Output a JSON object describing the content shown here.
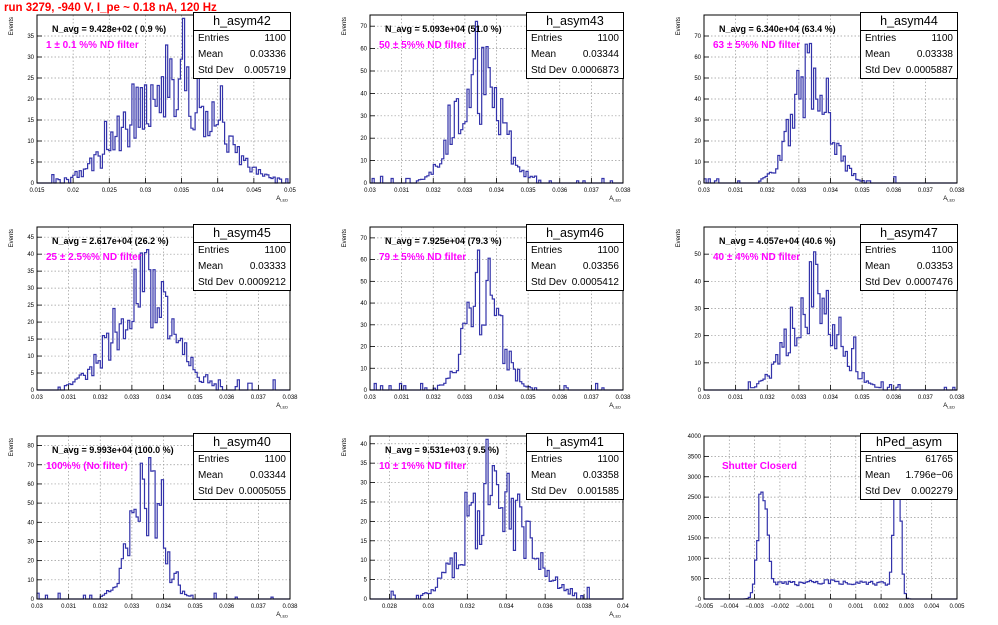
{
  "canvas": {
    "title": "run 3279,  -940 V, I_pe ~ 0.18 nA, 120 Hz",
    "title_color": "#ff0000"
  },
  "style": {
    "hist_color": "#3333aa",
    "label_color": "#ff00ff"
  },
  "chart_data": [
    {
      "type": "histogram",
      "hist": "h_asym42",
      "entries": "1100",
      "mean": "0.03336",
      "std_dev": "0.005719",
      "annotation": "N_avg = 9.428e+02 ( 0.9 %)",
      "label": "1 ± 0.1 %% ND filter",
      "xlabel": "A_LED",
      "ylabel": "Events",
      "xlim": [
        0.015,
        0.05
      ],
      "ylim": [
        0,
        40
      ],
      "xticks": [
        "0.015",
        "0.02",
        "0.025",
        "0.03",
        "0.035",
        "0.04",
        "0.045",
        "0.05"
      ],
      "yticks": [
        "0",
        "5",
        "10",
        "15",
        "20",
        "25",
        "30",
        "35"
      ],
      "grid": true,
      "shape": "wide"
    },
    {
      "type": "histogram",
      "hist": "h_asym43",
      "entries": "1100",
      "mean": "0.03344",
      "std_dev": "0.0006873",
      "annotation": "N_avg = 5.093e+04 (51.0 %)",
      "label": "50 ± 5%% ND filter",
      "xlabel": "A_LED",
      "ylabel": "Events",
      "xlim": [
        0.03,
        0.038
      ],
      "ylim": [
        0,
        75
      ],
      "xticks": [
        "0.03",
        "0.031",
        "0.032",
        "0.033",
        "0.034",
        "0.035",
        "0.036",
        "0.037",
        "0.038"
      ],
      "yticks": [
        "0",
        "10",
        "20",
        "30",
        "40",
        "50",
        "60",
        "70"
      ],
      "grid": true,
      "shape": "narrow"
    },
    {
      "type": "histogram",
      "hist": "h_asym44",
      "entries": "1100",
      "mean": "0.03338",
      "std_dev": "0.0005887",
      "annotation": "N_avg = 6.340e+04 (63.4 %)",
      "label": "63 ± 5%% ND filter",
      "xlabel": "A_LED",
      "ylabel": "Events",
      "xlim": [
        0.03,
        0.038
      ],
      "ylim": [
        0,
        80
      ],
      "xticks": [
        "0.03",
        "0.031",
        "0.032",
        "0.033",
        "0.034",
        "0.035",
        "0.036",
        "0.037",
        "0.038"
      ],
      "yticks": [
        "0",
        "10",
        "20",
        "30",
        "40",
        "50",
        "60",
        "70"
      ],
      "grid": true,
      "shape": "narrow"
    },
    {
      "type": "histogram",
      "hist": "h_asym45",
      "entries": "1100",
      "mean": "0.03333",
      "std_dev": "0.0009212",
      "annotation": "N_avg = 2.617e+04 (26.2 %)",
      "label": "25 ± 2.5%% ND filter",
      "xlabel": "A_LED",
      "ylabel": "Events",
      "xlim": [
        0.03,
        0.038
      ],
      "ylim": [
        0,
        48
      ],
      "xticks": [
        "0.03",
        "0.031",
        "0.032",
        "0.033",
        "0.034",
        "0.035",
        "0.036",
        "0.037",
        "0.038"
      ],
      "yticks": [
        "0",
        "5",
        "10",
        "15",
        "20",
        "25",
        "30",
        "35",
        "40",
        "45"
      ],
      "grid": true,
      "shape": "medium"
    },
    {
      "type": "histogram",
      "hist": "h_asym46",
      "entries": "1100",
      "mean": "0.03356",
      "std_dev": "0.0005412",
      "annotation": "N_avg = 7.925e+04 (79.3 %)",
      "label": "79 ± 5%% ND filter",
      "xlabel": "A_LED",
      "ylabel": "Events",
      "xlim": [
        0.03,
        0.038
      ],
      "ylim": [
        0,
        75
      ],
      "xticks": [
        "0.03",
        "0.031",
        "0.032",
        "0.033",
        "0.034",
        "0.035",
        "0.036",
        "0.037",
        "0.038"
      ],
      "yticks": [
        "0",
        "10",
        "20",
        "30",
        "40",
        "50",
        "60",
        "70"
      ],
      "grid": true,
      "shape": "narrow"
    },
    {
      "type": "histogram",
      "hist": "h_asym47",
      "entries": "1100",
      "mean": "0.03353",
      "std_dev": "0.0007476",
      "annotation": "N_avg = 4.057e+04 (40.6 %)",
      "label": "40 ± 4%% ND filter",
      "xlabel": "A_LED",
      "ylabel": "Events",
      "xlim": [
        0.03,
        0.038
      ],
      "ylim": [
        0,
        60
      ],
      "xticks": [
        "0.03",
        "0.031",
        "0.032",
        "0.033",
        "0.034",
        "0.035",
        "0.036",
        "0.037",
        "0.038"
      ],
      "yticks": [
        "0",
        "10",
        "20",
        "30",
        "40",
        "50"
      ],
      "grid": true,
      "shape": "medium"
    },
    {
      "type": "histogram",
      "hist": "h_asym40",
      "entries": "1100",
      "mean": "0.03344",
      "std_dev": "0.0005055",
      "annotation": "N_avg = 9.993e+04 (100.0 %)",
      "label": "100%% (No filter)",
      "xlabel": "A_LED",
      "ylabel": "Events",
      "xlim": [
        0.03,
        0.038
      ],
      "ylim": [
        0,
        85
      ],
      "xticks": [
        "0.03",
        "0.031",
        "0.032",
        "0.033",
        "0.034",
        "0.035",
        "0.036",
        "0.037",
        "0.038"
      ],
      "yticks": [
        "0",
        "10",
        "20",
        "30",
        "40",
        "50",
        "60",
        "70",
        "80"
      ],
      "grid": true,
      "shape": "narrow"
    },
    {
      "type": "histogram",
      "hist": "h_asym41",
      "entries": "1100",
      "mean": "0.03358",
      "std_dev": "0.001585",
      "annotation": "N_avg = 9.531e+03 ( 9.5 %)",
      "label": "10 ± 1%% ND filter",
      "xlabel": "A_LED",
      "ylabel": "Events",
      "xlim": [
        0.027,
        0.04
      ],
      "ylim": [
        0,
        42
      ],
      "xticks": [
        "0.028",
        "0.03",
        "0.032",
        "0.034",
        "0.036",
        "0.038",
        "0.04"
      ],
      "yticks": [
        "0",
        "5",
        "10",
        "15",
        "20",
        "25",
        "30",
        "35",
        "40"
      ],
      "grid": true,
      "shape": "wide"
    },
    {
      "type": "histogram",
      "hist": "hPed_asym",
      "entries": "61765",
      "mean": "1.796e−06",
      "std_dev": "0.002279",
      "annotation": "",
      "label": "Shutter Closerd",
      "xlabel": "",
      "ylabel": "",
      "xlim": [
        -0.005,
        0.005
      ],
      "ylim": [
        0,
        4000
      ],
      "xticks": [
        "−0.005",
        "−0.004",
        "−0.003",
        "−0.002",
        "−0.001",
        "0",
        "0.001",
        "0.002",
        "0.003",
        "0.004",
        "0.005"
      ],
      "yticks": [
        "0",
        "500",
        "1000",
        "1500",
        "2000",
        "2500",
        "3000",
        "3500",
        "4000"
      ],
      "grid": true,
      "shape": "ped"
    }
  ]
}
